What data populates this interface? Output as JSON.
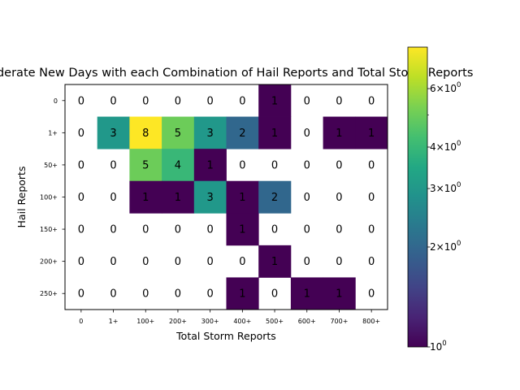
{
  "chart_data": {
    "type": "heatmap",
    "title": "Moderate New Days with each Combination of Hail Reports and Total Storm Reports",
    "xlabel": "Total Storm Reports",
    "ylabel": "Hail Reports",
    "x_categories": [
      "0",
      "1+",
      "100+",
      "200+",
      "300+",
      "400+",
      "500+",
      "600+",
      "700+",
      "800+"
    ],
    "y_categories": [
      "0",
      "1+",
      "50+",
      "100+",
      "150+",
      "200+",
      "250+"
    ],
    "values": [
      [
        0,
        0,
        0,
        0,
        0,
        0,
        1,
        0,
        0,
        0
      ],
      [
        0,
        3,
        8,
        5,
        3,
        2,
        1,
        0,
        1,
        1
      ],
      [
        0,
        0,
        5,
        4,
        1,
        0,
        0,
        0,
        0,
        0
      ],
      [
        0,
        0,
        1,
        1,
        3,
        1,
        2,
        0,
        0,
        0
      ],
      [
        0,
        0,
        0,
        0,
        0,
        1,
        0,
        0,
        0,
        0
      ],
      [
        0,
        0,
        0,
        0,
        0,
        0,
        1,
        0,
        0,
        0
      ],
      [
        0,
        0,
        0,
        0,
        0,
        1,
        0,
        1,
        1,
        0
      ]
    ],
    "color_scale": "log",
    "colormap": "viridis",
    "zero_cells": "blank",
    "colorbar": {
      "range": [
        1,
        8
      ],
      "tick_labels": [
        "$10^0$",
        "$2\\times10^0$",
        "$3\\times10^0$",
        "$4\\times10^0$",
        "$6\\times10^0$"
      ],
      "tick_values": [
        1,
        2,
        3,
        4,
        6
      ],
      "minor_tick_values": [
        5
      ]
    },
    "grid": false
  }
}
